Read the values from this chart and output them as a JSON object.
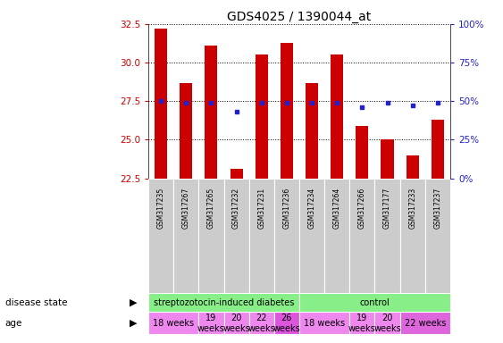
{
  "title": "GDS4025 / 1390044_at",
  "samples": [
    "GSM317235",
    "GSM317267",
    "GSM317265",
    "GSM317232",
    "GSM317231",
    "GSM317236",
    "GSM317234",
    "GSM317264",
    "GSM317266",
    "GSM317177",
    "GSM317233",
    "GSM317237"
  ],
  "counts": [
    32.2,
    28.7,
    31.1,
    23.1,
    30.5,
    31.3,
    28.7,
    30.5,
    25.9,
    25.0,
    24.0,
    26.3
  ],
  "percentile_vals": [
    27.5,
    27.4,
    27.4,
    26.8,
    27.4,
    27.4,
    27.4,
    27.4,
    27.1,
    27.4,
    27.2,
    27.4
  ],
  "ylim_left": [
    22.5,
    32.5
  ],
  "ylim_right": [
    0,
    100
  ],
  "yticks_left": [
    22.5,
    25.0,
    27.5,
    30.0,
    32.5
  ],
  "yticks_right": [
    0,
    25,
    50,
    75,
    100
  ],
  "bar_color": "#cc0000",
  "dot_color": "#2222cc",
  "disease_groups": [
    {
      "label": "streptozotocin-induced diabetes",
      "start": 0,
      "end": 6,
      "color": "#88ee88"
    },
    {
      "label": "control",
      "start": 6,
      "end": 12,
      "color": "#88ee88"
    }
  ],
  "age_groups": [
    {
      "label": "18 weeks",
      "start": 0,
      "end": 2,
      "color": "#ee88ee"
    },
    {
      "label": "19\nweeks",
      "start": 2,
      "end": 3,
      "color": "#ee88ee"
    },
    {
      "label": "20\nweeks",
      "start": 3,
      "end": 4,
      "color": "#ee88ee"
    },
    {
      "label": "22\nweeks",
      "start": 4,
      "end": 5,
      "color": "#ee88ee"
    },
    {
      "label": "26\nweeks",
      "start": 5,
      "end": 6,
      "color": "#dd55dd"
    },
    {
      "label": "18 weeks",
      "start": 6,
      "end": 8,
      "color": "#ee88ee"
    },
    {
      "label": "19\nweeks",
      "start": 8,
      "end": 9,
      "color": "#ee88ee"
    },
    {
      "label": "20\nweeks",
      "start": 9,
      "end": 10,
      "color": "#ee88ee"
    },
    {
      "label": "22 weeks",
      "start": 10,
      "end": 12,
      "color": "#dd66dd"
    }
  ],
  "legend_count_color": "#cc0000",
  "legend_dot_color": "#2222cc",
  "tick_color_left": "#cc0000",
  "tick_color_right": "#2222cc",
  "sample_bg_color": "#cccccc",
  "label_fontsize": 7.5,
  "tick_fontsize": 7.5,
  "bar_width": 0.5
}
